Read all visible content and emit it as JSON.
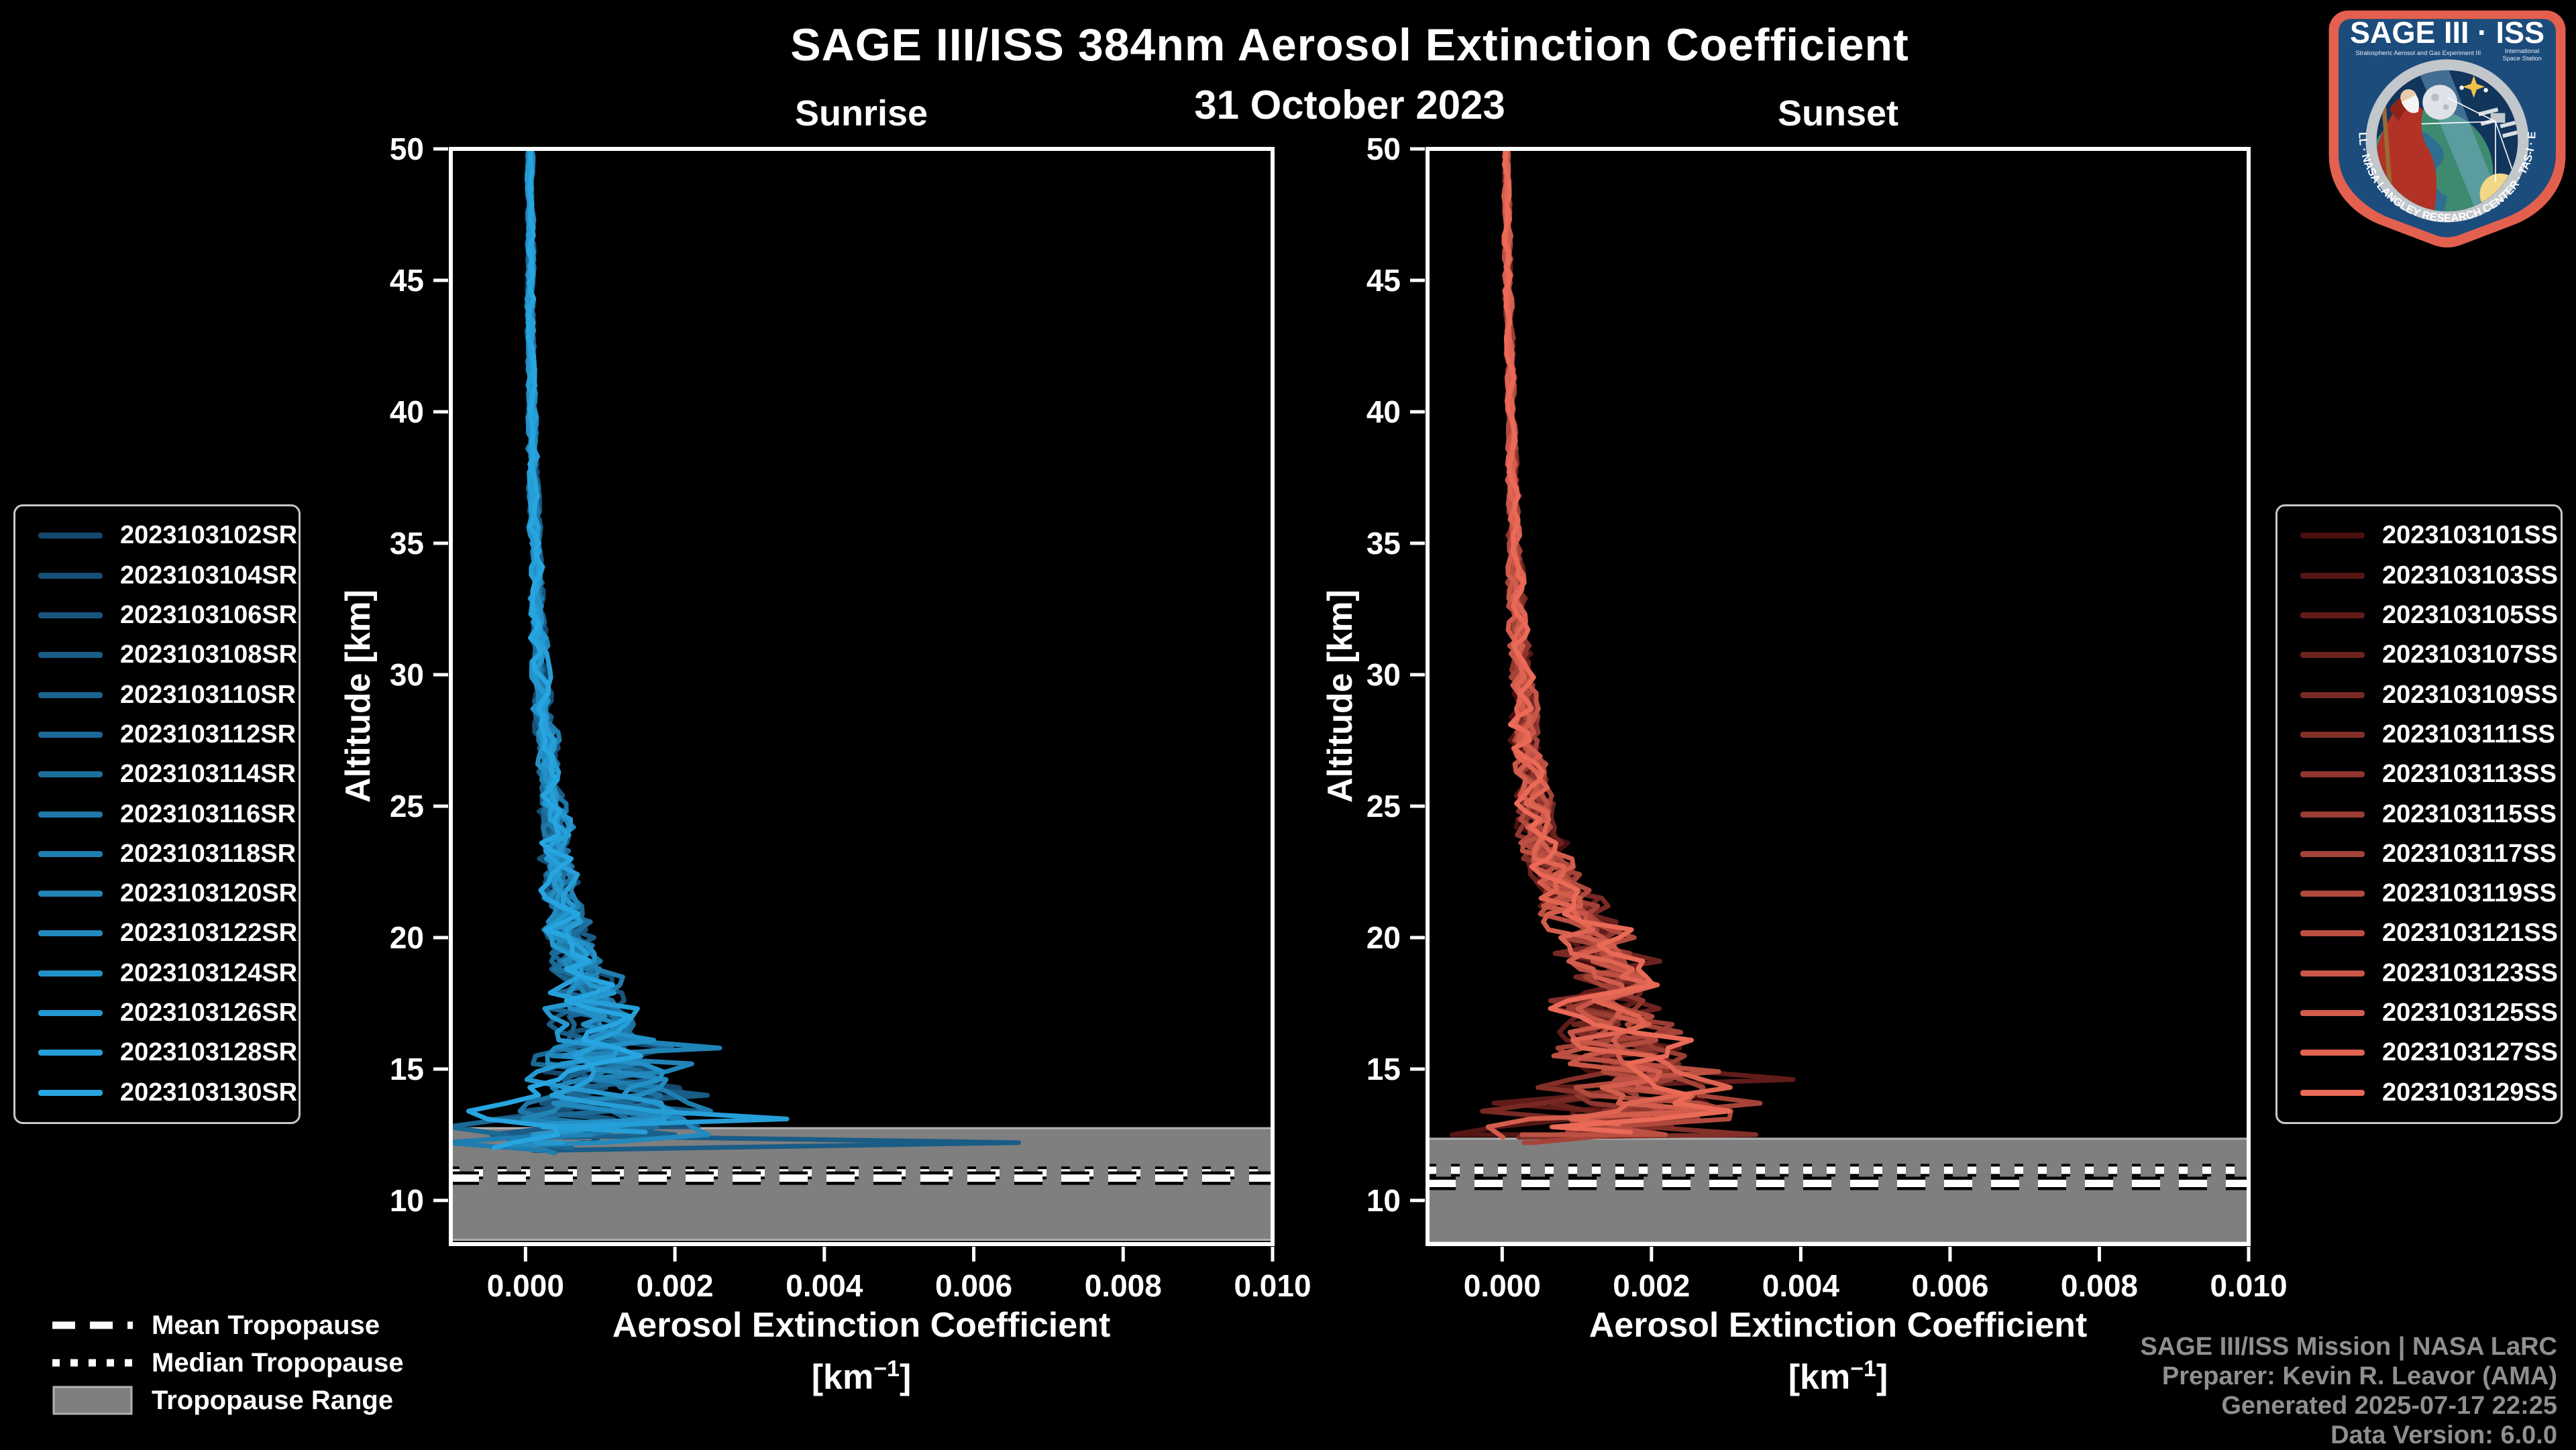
{
  "header": {
    "title": "SAGE III/ISS 384nm Aerosol Extinction Coefficient",
    "subtitle": "31 October 2023"
  },
  "footer": {
    "line1": "SAGE III/ISS Mission | NASA LaRC",
    "line2": "Preparer: Kevin R. Leavor (AMA)",
    "line3": "Generated 2025-07-17 22:25",
    "line4": "Data Version: 6.0.0"
  },
  "tropopause_legend": {
    "mean": "Mean Tropopause",
    "median": "Median Tropopause",
    "range": "Tropopause Range"
  },
  "logo": {
    "title": "SAGE III · ISS",
    "caption_left": "Stratospheric Aerosol and Gas Experiment III",
    "caption_right1": "International",
    "caption_right2": "Space Station",
    "rim_text": "BALL · NASA LANGLEY RESEARCH CENTER · TAS-I · ESA",
    "border_color": "#e4604e",
    "field_color": "#1c4c7c"
  },
  "colors": {
    "background": "#000000",
    "axis": "#ffffff",
    "tick_label": "#ffffff",
    "band_fill": "#7f7f7f",
    "band_edge": "#b2b2b2",
    "tropopause_line": "#ffffff",
    "tropopause_outline": "#000000",
    "credit_text": "#8f8f8f"
  },
  "chart_data": {
    "type": "line",
    "title": "SAGE III/ISS 384nm Aerosol Extinction Coefficient",
    "subtitle": "31 October 2023",
    "xlabel": "Aerosol Extinction Coefficient",
    "xlabel_unit_prefix": "[km",
    "xlabel_unit_exp": "−1",
    "xlabel_unit_suffix": "]",
    "ylabel": "Altitude [km]",
    "x_range": [
      -0.001,
      0.01
    ],
    "y_range": [
      8.34,
      50
    ],
    "x_tick_values": [
      0,
      0.002,
      0.004,
      0.006,
      0.008,
      0.01
    ],
    "x_tick_labels": [
      "0.000",
      "0.002",
      "0.004",
      "0.006",
      "0.008",
      "0.010"
    ],
    "y_ticks": [
      50,
      45,
      40,
      35,
      30,
      25,
      20,
      15,
      10
    ],
    "grid": false,
    "panels": [
      {
        "id": "sunrise",
        "title": "Sunrise",
        "color_start": "#15486d",
        "color_end": "#27a5e0",
        "tropopause": {
          "mean": 10.85,
          "median": 11.05,
          "range": [
            8.5,
            12.75
          ]
        },
        "base_profile": [
          [
            50,
            6e-05
          ],
          [
            45,
            7e-05
          ],
          [
            40,
            9e-05
          ],
          [
            36,
            0.00012
          ],
          [
            33,
            0.00015
          ],
          [
            30,
            0.0002
          ],
          [
            28,
            0.00026
          ],
          [
            26,
            0.00032
          ],
          [
            24,
            0.0004
          ],
          [
            22,
            0.0005
          ],
          [
            20,
            0.00062
          ],
          [
            19,
            0.0007
          ],
          [
            18,
            0.0008
          ],
          [
            17,
            0.00092
          ],
          [
            16,
            0.00108
          ],
          [
            15.5,
            0.00118
          ],
          [
            15,
            0.00108
          ],
          [
            14.5,
            0.00098
          ],
          [
            14,
            0.00115
          ],
          [
            13.5,
            0.00095
          ],
          [
            13,
            0.0007
          ],
          [
            12.5,
            0.00085
          ],
          [
            12,
            0.0004
          ],
          [
            11.5,
            0.0002
          ]
        ],
        "noise_amp": [
          [
            50,
            2e-05
          ],
          [
            40,
            3e-05
          ],
          [
            35,
            4e-05
          ],
          [
            30,
            6e-05
          ],
          [
            25,
            0.0001
          ],
          [
            22,
            0.00015
          ],
          [
            20,
            0.0002
          ],
          [
            18,
            0.00028
          ],
          [
            16.5,
            0.00038
          ],
          [
            15.5,
            0.0005
          ],
          [
            14.5,
            0.0006
          ],
          [
            13.5,
            0.0008
          ],
          [
            12.5,
            0.0009
          ],
          [
            11.5,
            0.0009
          ]
        ],
        "profiles": [
          {
            "label": "2023103102SR",
            "seed": 11,
            "end_alt": 12.6
          },
          {
            "label": "2023103104SR",
            "seed": 12,
            "end_alt": 12.2
          },
          {
            "label": "2023103106SR",
            "seed": 13,
            "end_alt": 12.8
          },
          {
            "label": "2023103108SR",
            "seed": 14,
            "end_alt": 11.9,
            "spike": [
              12.35,
              0.0066
            ]
          },
          {
            "label": "2023103110SR",
            "seed": 15,
            "end_alt": 12.4
          },
          {
            "label": "2023103112SR",
            "seed": 16,
            "end_alt": 12.0
          },
          {
            "label": "2023103114SR",
            "seed": 17,
            "end_alt": 12.7
          },
          {
            "label": "2023103116SR",
            "seed": 18,
            "end_alt": 12.3
          },
          {
            "label": "2023103118SR",
            "seed": 19,
            "end_alt": 11.8
          },
          {
            "label": "2023103120SR",
            "seed": 20,
            "end_alt": 12.5,
            "spike": [
              15.9,
              0.0026
            ]
          },
          {
            "label": "2023103122SR",
            "seed": 21,
            "end_alt": 12.1
          },
          {
            "label": "2023103124SR",
            "seed": 22,
            "end_alt": 12.9
          },
          {
            "label": "2023103126SR",
            "seed": 23,
            "end_alt": 12.2
          },
          {
            "label": "2023103128SR",
            "seed": 24,
            "end_alt": 12.6,
            "spike": [
              13.2,
              0.0035
            ]
          },
          {
            "label": "2023103130SR",
            "seed": 25,
            "end_alt": 12.0
          }
        ]
      },
      {
        "id": "sunset",
        "title": "Sunset",
        "color_start": "#4a0f0f",
        "color_end": "#ea6a57",
        "tropopause": {
          "mean": 10.65,
          "median": 11.15,
          "range": [
            8.4,
            12.35
          ]
        },
        "base_profile": [
          [
            50,
            6e-05
          ],
          [
            45,
            8e-05
          ],
          [
            40,
            0.00012
          ],
          [
            35,
            0.00017
          ],
          [
            32,
            0.00021
          ],
          [
            30,
            0.00026
          ],
          [
            28,
            0.00033
          ],
          [
            26,
            0.0004
          ],
          [
            25,
            0.00045
          ],
          [
            24,
            0.00052
          ],
          [
            23,
            0.00062
          ],
          [
            22,
            0.00078
          ],
          [
            21,
            0.00095
          ],
          [
            20,
            0.00125
          ],
          [
            19,
            0.0015
          ],
          [
            18,
            0.00155
          ],
          [
            17,
            0.00148
          ],
          [
            16,
            0.00155
          ],
          [
            15.5,
            0.00165
          ],
          [
            15,
            0.00185
          ],
          [
            14.5,
            0.00205
          ],
          [
            14,
            0.00185
          ],
          [
            13.5,
            0.00155
          ],
          [
            13,
            0.00115
          ],
          [
            12.5,
            0.0008
          ],
          [
            12.2,
            0.0006
          ]
        ],
        "noise_amp": [
          [
            50,
            2e-05
          ],
          [
            40,
            3e-05
          ],
          [
            35,
            5e-05
          ],
          [
            30,
            8e-05
          ],
          [
            27,
            0.00012
          ],
          [
            25,
            0.00015
          ],
          [
            22,
            0.0002
          ],
          [
            20,
            0.00028
          ],
          [
            18,
            0.00038
          ],
          [
            16,
            0.0005
          ],
          [
            15,
            0.00065
          ],
          [
            14,
            0.00085
          ],
          [
            13,
            0.0009
          ],
          [
            12.2,
            0.0008
          ]
        ],
        "profiles": [
          {
            "label": "2023103101SS",
            "seed": 31,
            "end_alt": 12.9
          },
          {
            "label": "2023103103SS",
            "seed": 32,
            "end_alt": 12.5
          },
          {
            "label": "2023103105SS",
            "seed": 33,
            "end_alt": 13.1,
            "spike": [
              14.5,
              0.0039
            ]
          },
          {
            "label": "2023103107SS",
            "seed": 34,
            "end_alt": 12.3
          },
          {
            "label": "2023103109SS",
            "seed": 35,
            "end_alt": 12.7
          },
          {
            "label": "2023103111SS",
            "seed": 36,
            "end_alt": 12.4,
            "spike": [
              12.6,
              0.0034
            ]
          },
          {
            "label": "2023103113SS",
            "seed": 37,
            "end_alt": 13.0
          },
          {
            "label": "2023103115SS",
            "seed": 38,
            "end_alt": 12.6
          },
          {
            "label": "2023103117SS",
            "seed": 39,
            "end_alt": 12.2
          },
          {
            "label": "2023103119SS",
            "seed": 40,
            "end_alt": 12.8
          },
          {
            "label": "2023103121SS",
            "seed": 41,
            "end_alt": 12.5
          },
          {
            "label": "2023103123SS",
            "seed": 42,
            "end_alt": 13.2
          },
          {
            "label": "2023103125SS",
            "seed": 43,
            "end_alt": 12.4,
            "spike": [
              13.5,
              0.003
            ]
          },
          {
            "label": "2023103127SS",
            "seed": 44,
            "end_alt": 12.9
          },
          {
            "label": "2023103129SS",
            "seed": 45,
            "end_alt": 12.6
          }
        ]
      }
    ]
  }
}
